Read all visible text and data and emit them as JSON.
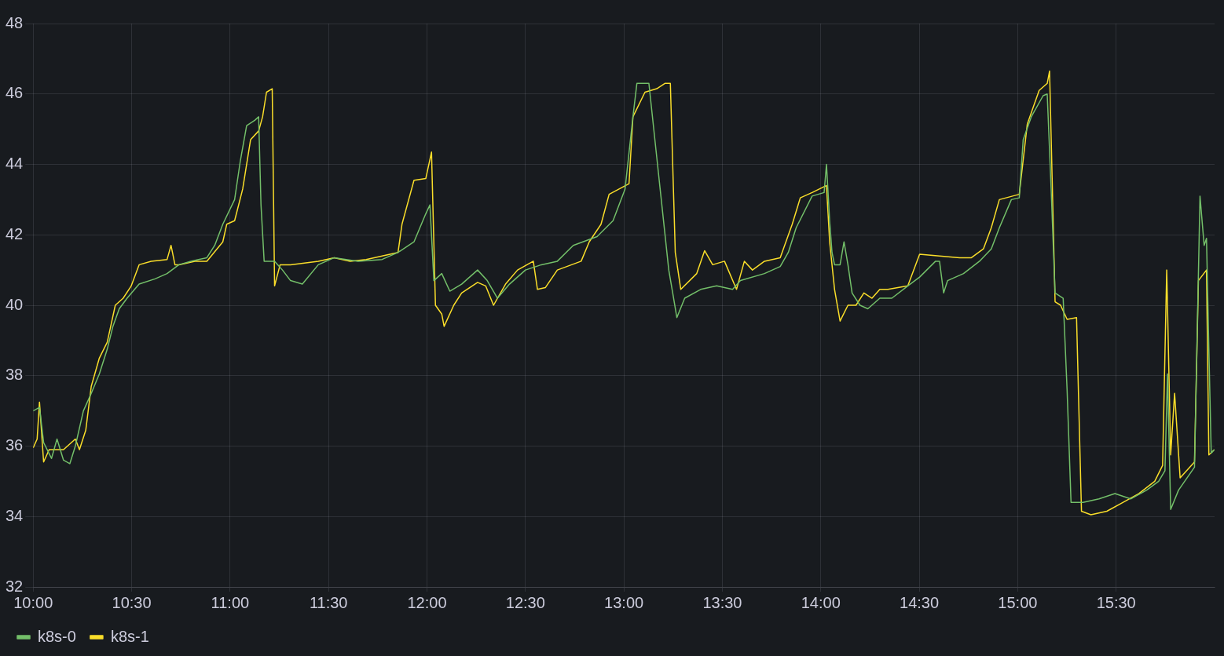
{
  "chart_data": {
    "type": "line",
    "xlim": [
      10,
      16
    ],
    "ylim": [
      32,
      48
    ],
    "xticks": [
      {
        "value": 10,
        "label": "10:00"
      },
      {
        "value": 10.5,
        "label": "10:30"
      },
      {
        "value": 11,
        "label": "11:00"
      },
      {
        "value": 11.5,
        "label": "11:30"
      },
      {
        "value": 12,
        "label": "12:00"
      },
      {
        "value": 12.5,
        "label": "12:30"
      },
      {
        "value": 13,
        "label": "13:00"
      },
      {
        "value": 13.5,
        "label": "13:30"
      },
      {
        "value": 14,
        "label": "14:00"
      },
      {
        "value": 14.5,
        "label": "14:30"
      },
      {
        "value": 15,
        "label": "15:00"
      },
      {
        "value": 15.5,
        "label": "15:30"
      }
    ],
    "yticks": [
      32,
      34,
      36,
      38,
      40,
      42,
      44,
      46,
      48
    ],
    "grid": true,
    "legend": "bottom left",
    "marker": "none",
    "line_style": "solid",
    "series": [
      {
        "name": "k8s-0",
        "color": "#73bf69",
        "x": [
          10,
          10.032,
          10.053,
          10.093,
          10.121,
          10.154,
          10.186,
          10.214,
          10.255,
          10.295,
          10.336,
          10.376,
          10.405,
          10.437,
          10.477,
          10.538,
          10.619,
          10.68,
          10.74,
          10.801,
          10.882,
          10.922,
          10.963,
          11.023,
          11.052,
          11.084,
          11.125,
          11.145,
          11.157,
          11.173,
          11.226,
          11.266,
          11.307,
          11.367,
          11.448,
          11.529,
          11.65,
          11.772,
          11.853,
          11.934,
          11.994,
          12.015,
          12.035,
          12.075,
          12.116,
          12.176,
          12.257,
          12.306,
          12.358,
          12.419,
          12.5,
          12.581,
          12.662,
          12.743,
          12.864,
          12.945,
          13.006,
          13.046,
          13.066,
          13.127,
          13.167,
          13.188,
          13.228,
          13.248,
          13.269,
          13.309,
          13.39,
          13.471,
          13.552,
          13.592,
          13.714,
          13.794,
          13.835,
          13.875,
          13.956,
          14.017,
          14.029,
          14.045,
          14.057,
          14.07,
          14.098,
          14.118,
          14.138,
          14.159,
          14.199,
          14.239,
          14.3,
          14.361,
          14.442,
          14.502,
          14.583,
          14.603,
          14.624,
          14.644,
          14.725,
          14.806,
          14.866,
          14.907,
          14.968,
          15.008,
          15.028,
          15.069,
          15.129,
          15.15,
          15.17,
          15.19,
          15.231,
          15.251,
          15.271,
          15.332,
          15.413,
          15.494,
          15.574,
          15.655,
          15.716,
          15.748,
          15.761,
          15.777,
          15.817,
          15.898,
          15.926,
          15.947,
          15.959,
          15.971,
          15.983,
          15.999
        ],
        "values": [
          37.0,
          37.1,
          36.1,
          35.65,
          36.2,
          35.6,
          35.5,
          36.0,
          37.0,
          37.5,
          38.05,
          38.75,
          39.4,
          39.9,
          40.2,
          40.6,
          40.75,
          40.9,
          41.15,
          41.25,
          41.35,
          41.7,
          42.3,
          43.0,
          44.1,
          45.1,
          45.25,
          45.35,
          42.85,
          41.25,
          41.25,
          41.0,
          40.7,
          40.6,
          41.15,
          41.35,
          41.25,
          41.3,
          41.5,
          41.8,
          42.6,
          42.85,
          40.7,
          40.9,
          40.4,
          40.6,
          41.0,
          40.7,
          40.2,
          40.6,
          41.0,
          41.15,
          41.25,
          41.7,
          41.95,
          42.4,
          43.3,
          45.35,
          46.3,
          46.3,
          44.2,
          43.1,
          41.0,
          40.35,
          39.65,
          40.2,
          40.45,
          40.55,
          40.45,
          40.7,
          40.9,
          41.1,
          41.5,
          42.2,
          43.1,
          43.2,
          44.0,
          42.4,
          41.5,
          41.15,
          41.15,
          41.8,
          41.15,
          40.35,
          40.0,
          39.9,
          40.2,
          40.2,
          40.55,
          40.8,
          41.25,
          41.25,
          40.35,
          40.7,
          40.9,
          41.25,
          41.6,
          42.2,
          43.0,
          43.05,
          44.7,
          45.35,
          45.95,
          46.0,
          43.3,
          40.35,
          40.2,
          37.6,
          34.4,
          34.4,
          34.5,
          34.65,
          34.5,
          34.75,
          35.0,
          35.3,
          38.05,
          34.2,
          34.75,
          35.4,
          43.1,
          41.7,
          41.9,
          38.75,
          35.8,
          35.9
        ]
      },
      {
        "name": "k8s-1",
        "color": "#fade2a",
        "x": [
          10,
          10.02,
          10.032,
          10.053,
          10.081,
          10.154,
          10.194,
          10.214,
          10.235,
          10.267,
          10.295,
          10.336,
          10.376,
          10.417,
          10.457,
          10.498,
          10.538,
          10.599,
          10.68,
          10.7,
          10.72,
          10.74,
          10.821,
          10.882,
          10.963,
          10.983,
          11.023,
          11.064,
          11.104,
          11.145,
          11.165,
          11.185,
          11.214,
          11.226,
          11.254,
          11.307,
          11.448,
          11.529,
          11.61,
          11.691,
          11.853,
          11.873,
          11.934,
          11.994,
          12.023,
          12.043,
          12.075,
          12.087,
          12.136,
          12.176,
          12.257,
          12.298,
          12.338,
          12.399,
          12.46,
          12.54,
          12.561,
          12.601,
          12.662,
          12.783,
          12.824,
          12.884,
          12.925,
          13.026,
          13.046,
          13.107,
          13.167,
          13.208,
          13.236,
          13.261,
          13.289,
          13.37,
          13.41,
          13.451,
          13.511,
          13.572,
          13.612,
          13.653,
          13.714,
          13.794,
          13.855,
          13.896,
          13.956,
          14.029,
          14.045,
          14.07,
          14.098,
          14.138,
          14.179,
          14.219,
          14.26,
          14.3,
          14.341,
          14.442,
          14.502,
          14.603,
          14.705,
          14.765,
          14.826,
          14.866,
          14.907,
          15.008,
          15.049,
          15.109,
          15.15,
          15.162,
          15.19,
          15.218,
          15.251,
          15.299,
          15.324,
          15.372,
          15.453,
          15.534,
          15.615,
          15.696,
          15.736,
          15.757,
          15.777,
          15.797,
          15.825,
          15.898,
          15.918,
          15.959,
          15.971,
          15.999
        ],
        "values": [
          35.95,
          36.2,
          37.25,
          35.55,
          35.9,
          35.9,
          36.1,
          36.2,
          35.9,
          36.45,
          37.7,
          38.5,
          38.95,
          40.0,
          40.2,
          40.55,
          41.15,
          41.25,
          41.3,
          41.7,
          41.15,
          41.15,
          41.25,
          41.25,
          41.8,
          42.3,
          42.4,
          43.3,
          44.7,
          44.95,
          45.35,
          46.05,
          46.15,
          40.55,
          41.15,
          41.15,
          41.25,
          41.35,
          41.25,
          41.3,
          41.5,
          42.3,
          43.55,
          43.6,
          44.35,
          40.0,
          39.75,
          39.4,
          40.0,
          40.35,
          40.65,
          40.55,
          40.0,
          40.6,
          41.0,
          41.25,
          40.45,
          40.5,
          41.0,
          41.25,
          41.8,
          42.3,
          43.15,
          43.45,
          45.35,
          46.05,
          46.15,
          46.3,
          46.3,
          41.5,
          40.45,
          40.9,
          41.55,
          41.15,
          41.25,
          40.45,
          41.25,
          41.0,
          41.25,
          41.35,
          42.3,
          43.05,
          43.2,
          43.4,
          41.8,
          40.45,
          39.55,
          40.0,
          40.0,
          40.35,
          40.2,
          40.45,
          40.45,
          40.55,
          41.45,
          41.4,
          41.35,
          41.35,
          41.6,
          42.2,
          43.0,
          43.15,
          45.15,
          46.1,
          46.3,
          46.65,
          40.1,
          40.0,
          39.6,
          39.65,
          34.15,
          34.05,
          34.15,
          34.4,
          34.65,
          35.0,
          35.45,
          41.0,
          35.75,
          37.5,
          35.1,
          35.55,
          40.7,
          41.0,
          35.75,
          35.9
        ]
      }
    ]
  }
}
